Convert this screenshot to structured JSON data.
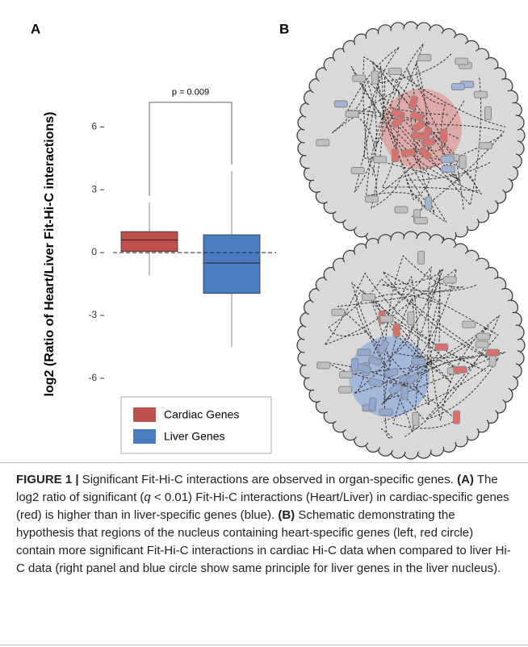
{
  "panel_labels": [
    "A",
    "B"
  ],
  "chart_data": {
    "type": "box",
    "y_label": "log2 (Ratio of Heart/Liver Fit-Hi-C interactions)",
    "annotation": "p = 0.009",
    "reference_line": 0,
    "ylim": [
      -7.2,
      8.4
    ],
    "yticks": [
      6,
      3,
      0,
      -3,
      -6
    ],
    "series": [
      {
        "name": "Cardiac Genes",
        "color": "#c0504d",
        "whisker_low": -1.1,
        "q1": 0.05,
        "median": 0.6,
        "q3": 1.0,
        "whisker_high": 2.4
      },
      {
        "name": "Liver Genes",
        "color": "#4a7cc1",
        "whisker_low": -4.5,
        "q1": -1.95,
        "median": -0.5,
        "q3": 0.85,
        "whisker_high": 3.9
      }
    ]
  },
  "caption": {
    "label": "FIGURE 1 |",
    "intro": "Significant Fit-Hi-C interactions are observed in organ-specific genes.",
    "a_label": "(A)",
    "a_text_1": "The log2 ratio of significant (",
    "a_symbol": "q",
    "a_text_2": " < 0.01) Fit-Hi-C interactions (Heart/Liver) in cardiac-specific genes (red) is higher than in liver-specific genes (blue).",
    "b_label": "(B)",
    "b_text": "Schematic demonstrating the hypothesis that regions of the nucleus containing heart-specific genes (left, red circle) contain more significant Fit-Hi-C interactions in cardiac Hi-C data when compared to liver Hi-C data (right panel and blue circle show same principle for liver genes in the liver nucleus)."
  }
}
